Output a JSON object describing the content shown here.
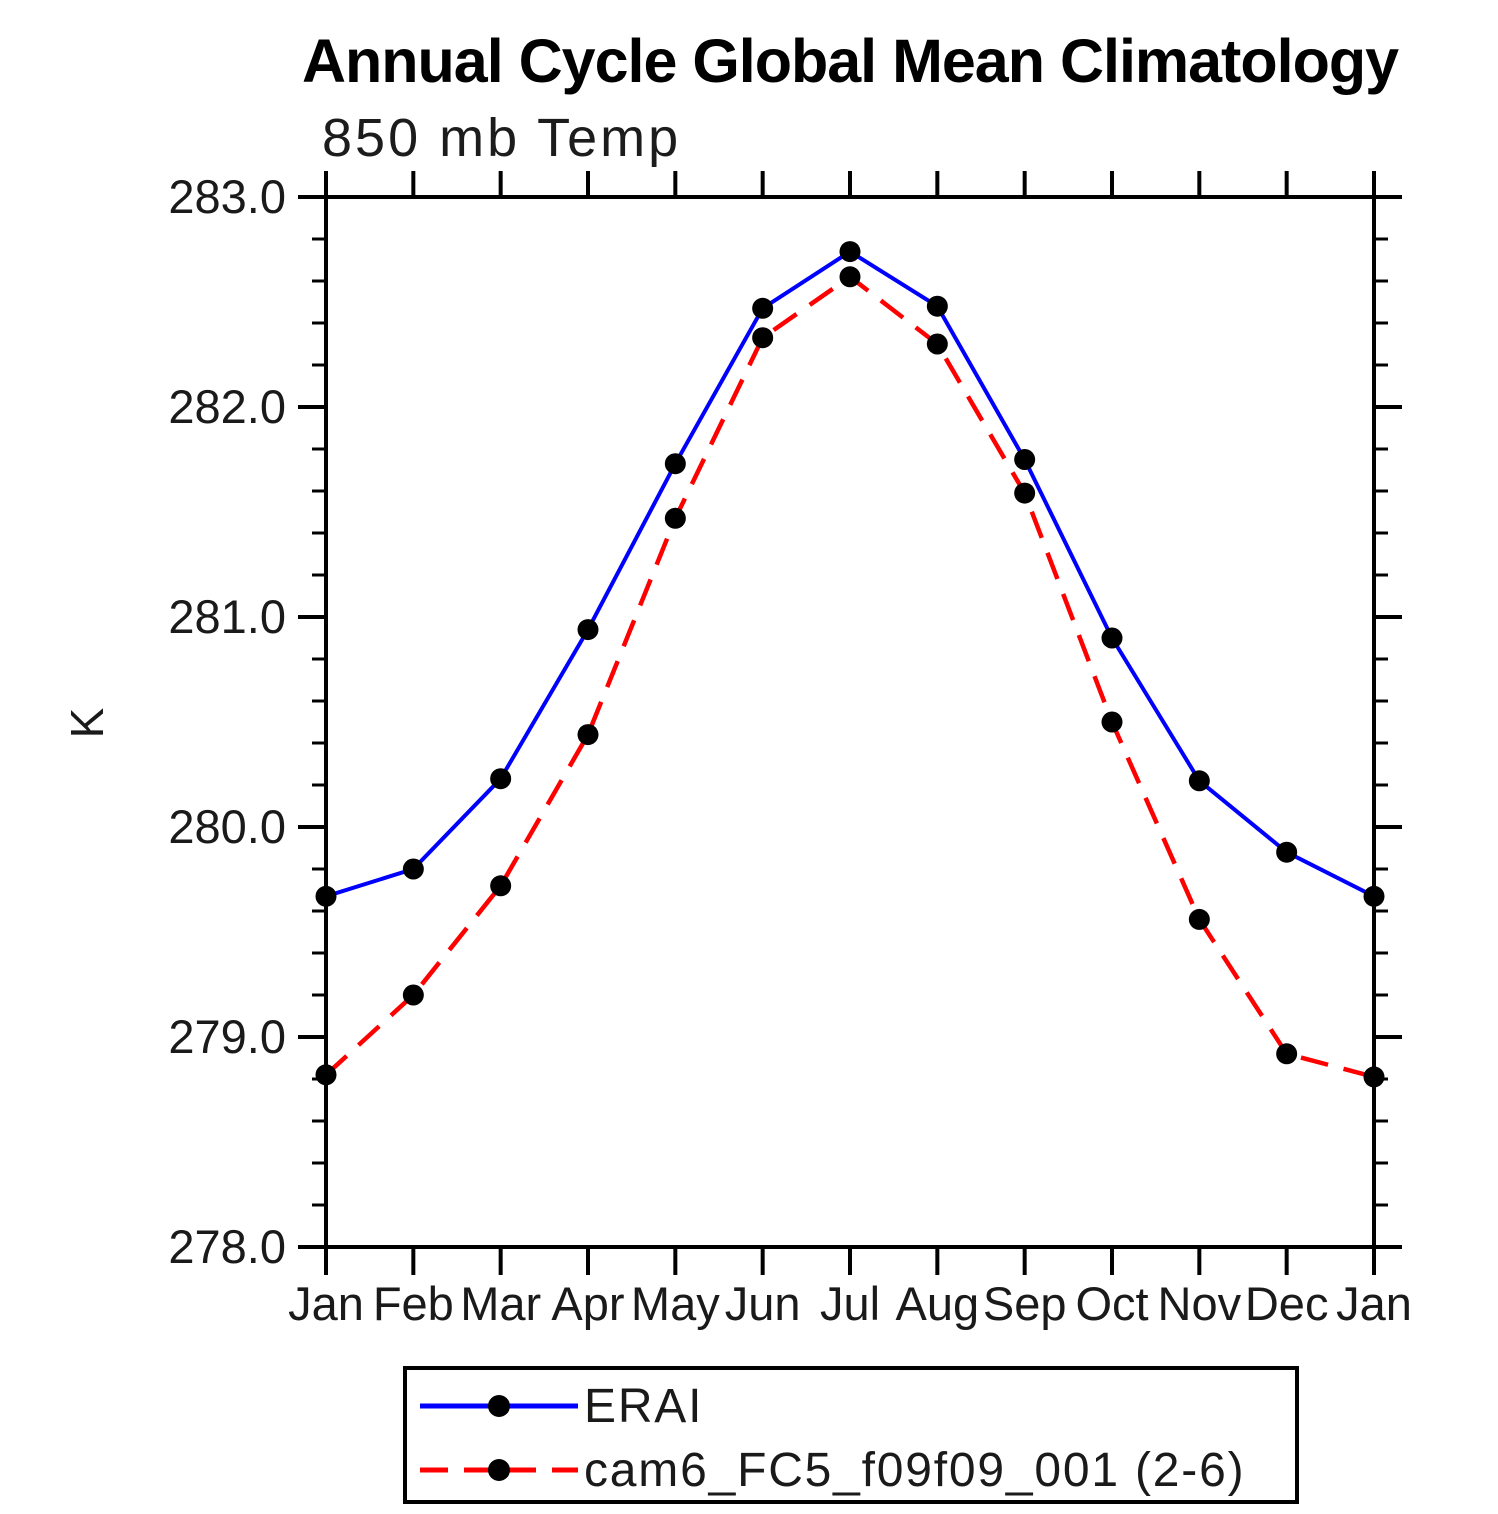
{
  "title": "Annual Cycle Global Mean Climatology",
  "subtitle": "850 mb Temp",
  "y_axis_label": "K",
  "legend": {
    "items": [
      {
        "label": "ERAI",
        "color": "#0000ff",
        "style": "solid"
      },
      {
        "label": "cam6_FC5_f09f09_001 (2-6)",
        "color": "#ff0000",
        "style": "dashed"
      }
    ]
  },
  "colors": {
    "axis": "#000000",
    "text": "#1a1a1a",
    "marker": "#000000",
    "erai_line": "#0000ff",
    "cam6_line": "#ff0000"
  },
  "chart_data": {
    "type": "line",
    "title": "Annual Cycle Global Mean Climatology",
    "subtitle": "850 mb Temp",
    "ylabel": "K",
    "x_categories": [
      "Jan",
      "Feb",
      "Mar",
      "Apr",
      "May",
      "Jun",
      "Jul",
      "Aug",
      "Sep",
      "Oct",
      "Nov",
      "Dec",
      "Jan"
    ],
    "y_tick_labels": [
      "283.0",
      "282.0",
      "281.0",
      "280.0",
      "279.0",
      "278.0"
    ],
    "y_tick_values": [
      283.0,
      282.0,
      281.0,
      280.0,
      279.0,
      278.0
    ],
    "ylim": [
      278.0,
      283.0
    ],
    "minor_tick_step": 0.2,
    "grid": false,
    "legend_position": "bottom",
    "series": [
      {
        "name": "ERAI",
        "color": "#0000ff",
        "line_style": "solid",
        "marker": "filled-circle",
        "values": [
          279.67,
          279.8,
          280.23,
          280.94,
          281.73,
          282.47,
          282.74,
          282.48,
          281.75,
          280.9,
          280.22,
          279.88,
          279.67
        ]
      },
      {
        "name": "cam6_FC5_f09f09_001 (2-6)",
        "color": "#ff0000",
        "line_style": "dashed",
        "marker": "filled-circle",
        "values": [
          278.82,
          279.2,
          279.72,
          280.44,
          281.47,
          282.33,
          282.62,
          282.3,
          281.59,
          280.5,
          279.56,
          278.92,
          278.81
        ]
      }
    ]
  }
}
